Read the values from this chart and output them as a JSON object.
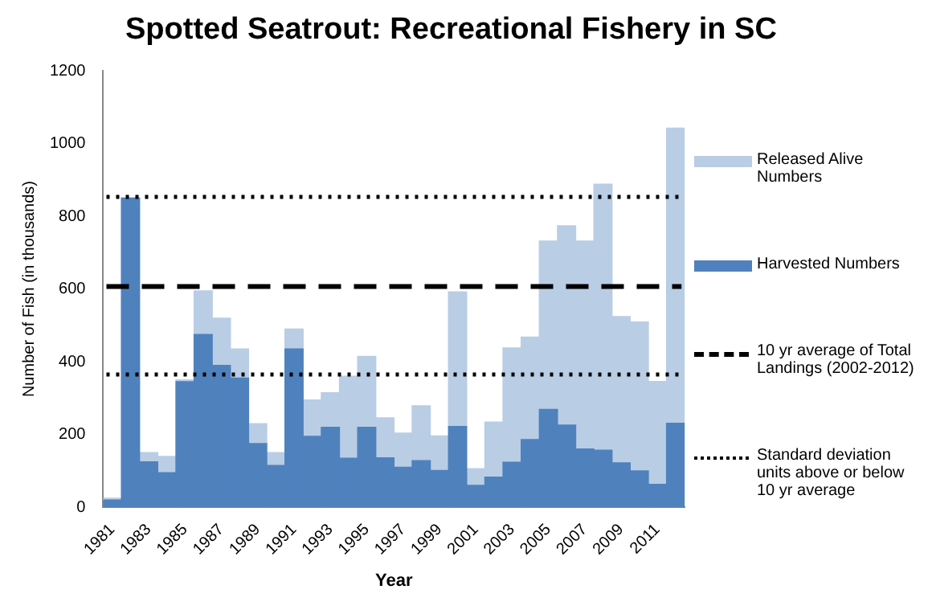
{
  "chart_data": {
    "type": "bar",
    "title": "Spotted Seatrout: Recreational Fishery in SC",
    "xlabel": "Year",
    "ylabel": "Number of Fish (in thousands)",
    "categories": [
      "1981",
      null,
      "1983",
      null,
      "1985",
      null,
      "1987",
      null,
      "1989",
      null,
      "1991",
      null,
      "1993",
      null,
      "1995",
      null,
      "1997",
      null,
      "1999",
      null,
      "2001",
      null,
      "2003",
      null,
      "2005",
      null,
      "2007",
      null,
      "2009",
      null,
      "2011",
      null
    ],
    "stacked": true,
    "series": [
      {
        "name": "Harvested Numbers",
        "color": "#4f81bd",
        "values": [
          20,
          850,
          125,
          95,
          345,
          475,
          390,
          355,
          175,
          115,
          435,
          195,
          220,
          135,
          220,
          136,
          110,
          128,
          101,
          222,
          60,
          83,
          124,
          186,
          269,
          226,
          160,
          157,
          122,
          100,
          63,
          231
        ]
      },
      {
        "name": "Released Alive Numbers",
        "color": "#b9cde5",
        "values": [
          5,
          0,
          25,
          45,
          5,
          120,
          130,
          80,
          55,
          35,
          55,
          100,
          95,
          225,
          195,
          110,
          94,
          151,
          95,
          370,
          46,
          151,
          314,
          282,
          463,
          548,
          572,
          731,
          402,
          409,
          283,
          811
        ]
      }
    ],
    "ylim": [
      0,
      1200
    ],
    "yticks": [
      0,
      200,
      400,
      600,
      800,
      1000,
      1200
    ],
    "grid": false,
    "legend": "right",
    "ref_lines": [
      {
        "axis": "y",
        "value": 607,
        "label": "10 yr average of Total Landings (2002-2012)",
        "color": "#000000",
        "line_style": "dashed"
      },
      {
        "axis": "y",
        "value": 853,
        "label": "Standard deviation units above or below 10 yr average",
        "color": "#000000",
        "line_style": "dotted"
      },
      {
        "axis": "y",
        "value": 365,
        "label": null,
        "color": "#000000",
        "line_style": "dotted"
      }
    ]
  }
}
